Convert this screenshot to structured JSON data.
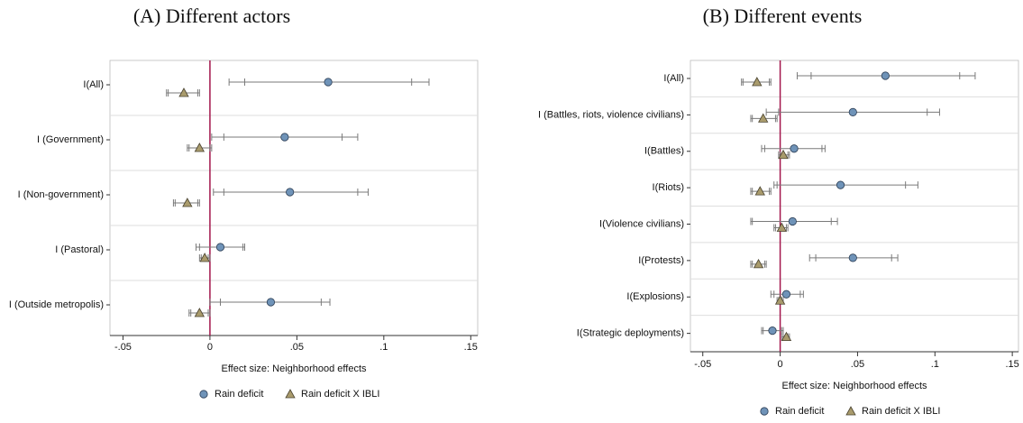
{
  "chart_data": [
    {
      "type": "coefplot",
      "title": "(A) Different actors",
      "xlabel": "Effect size: Neighborhood effects",
      "categories": [
        "I(All)",
        "I (Government)",
        "I (Non-government)",
        "I (Pastoral)",
        "I (Outside metropolis)"
      ],
      "xlim": [
        -0.0575,
        0.154
      ],
      "xticks": [
        {
          "value": -0.05,
          "label": "-.05"
        },
        0,
        {
          "value": 0.05,
          "label": ".05"
        },
        {
          "value": 0.1,
          "label": ".1"
        },
        {
          "value": 0.15,
          "label": ".15"
        }
      ],
      "zero_line_color": "#a3164c",
      "series": [
        {
          "name": "Rain deficit",
          "color": "#6f93b8",
          "marker": "circle",
          "values": [
            0.068,
            0.043,
            0.046,
            0.006,
            0.035
          ],
          "low": [
            0.011,
            0.001,
            0.002,
            -0.008,
            0.0
          ],
          "high": [
            0.126,
            0.085,
            0.091,
            0.02,
            0.069
          ],
          "low90": [
            0.02,
            0.008,
            0.008,
            -0.006,
            0.006
          ],
          "high90": [
            0.116,
            0.076,
            0.085,
            0.019,
            0.064
          ]
        },
        {
          "name": "Rain deficit X IBLI",
          "color": "#a99b6c",
          "marker": "triangle",
          "values": [
            -0.015,
            -0.006,
            -0.013,
            -0.003,
            -0.006
          ],
          "low": [
            -0.025,
            -0.013,
            -0.021,
            -0.006,
            -0.012
          ],
          "high": [
            -0.006,
            0.001,
            -0.006,
            0.0,
            0.0
          ],
          "low90": [
            -0.024,
            -0.012,
            -0.02,
            -0.005,
            -0.011
          ],
          "high90": [
            -0.007,
            0.0,
            -0.007,
            -0.001,
            -0.001
          ]
        }
      ]
    },
    {
      "type": "coefplot",
      "title": "(B) Different events",
      "xlabel": "Effect size: Neighborhood effects",
      "categories": [
        "I(All)",
        "I (Battles, riots, violence civilians)",
        "I(Battles)",
        "I(Riots)",
        "I(Violence civilians)",
        "I(Protests)",
        "I(Explosions)",
        "I(Strategic deployments)"
      ],
      "xlim": [
        -0.058,
        0.154
      ],
      "xticks": [
        {
          "value": -0.05,
          "label": "-.05"
        },
        0,
        {
          "value": 0.05,
          "label": ".05"
        },
        {
          "value": 0.1,
          "label": ".1"
        },
        {
          "value": 0.15,
          "label": ".15"
        }
      ],
      "zero_line_color": "#a3164c",
      "series": [
        {
          "name": "Rain deficit",
          "color": "#6f93b8",
          "marker": "circle",
          "values": [
            0.068,
            0.047,
            0.009,
            0.039,
            0.008,
            0.047,
            0.004,
            -0.005
          ],
          "low": [
            0.011,
            -0.009,
            -0.012,
            -0.004,
            -0.019,
            0.019,
            -0.006,
            -0.012
          ],
          "high": [
            0.126,
            0.103,
            0.029,
            0.089,
            0.037,
            0.076,
            0.015,
            0.002
          ],
          "low90": [
            0.02,
            -0.001,
            -0.01,
            -0.002,
            -0.018,
            0.023,
            -0.004,
            -0.011
          ],
          "high90": [
            0.116,
            0.095,
            0.027,
            0.081,
            0.033,
            0.072,
            0.013,
            0.001
          ]
        },
        {
          "name": "Rain deficit X IBLI",
          "color": "#a99b6c",
          "marker": "triangle",
          "values": [
            -0.015,
            -0.011,
            0.002,
            -0.013,
            0.001,
            -0.014,
            0.0,
            0.004
          ],
          "low": [
            -0.025,
            -0.019,
            -0.001,
            -0.019,
            -0.004,
            -0.019,
            -0.002,
            0.001
          ],
          "high": [
            -0.006,
            -0.002,
            0.006,
            -0.006,
            0.005,
            -0.009,
            0.002,
            0.006
          ],
          "low90": [
            -0.024,
            -0.018,
            0.0,
            -0.018,
            -0.003,
            -0.018,
            -0.001,
            0.002
          ],
          "high90": [
            -0.007,
            -0.003,
            0.005,
            -0.007,
            0.004,
            -0.01,
            0.001,
            0.005
          ]
        }
      ]
    }
  ]
}
